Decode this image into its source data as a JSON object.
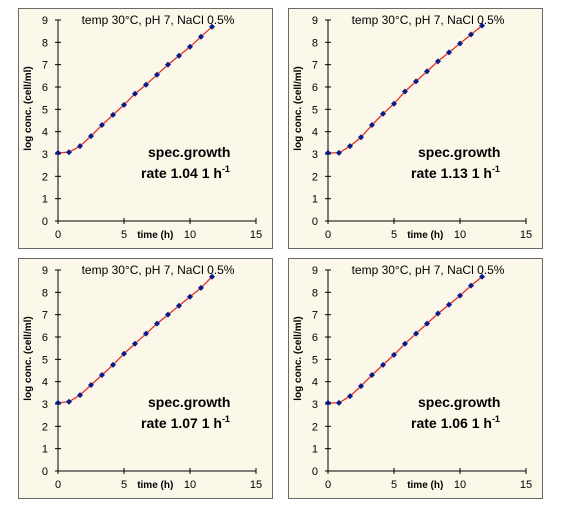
{
  "chart_data": [
    {
      "type": "scatter",
      "title": "temp 30°C, pH 7, NaCl 0.5%",
      "xlabel": "time (h)",
      "ylabel": "log conc. (cell/ml)",
      "xlim": [
        0,
        15
      ],
      "ylim": [
        0,
        9
      ],
      "xticks": [
        "0",
        "5",
        "10",
        "15"
      ],
      "yticks": [
        "0",
        "1",
        "2",
        "3",
        "4",
        "5",
        "6",
        "7",
        "8",
        "9"
      ],
      "grid": false,
      "annotation": {
        "line1": "spec.growth",
        "line2": "rate 1.04 1 h",
        "sup": "-1"
      },
      "series": [
        {
          "x": [
            0,
            0.83,
            1.67,
            2.5,
            3.33,
            4.17,
            5,
            5.83,
            6.67,
            7.5,
            8.33,
            9.17,
            10,
            10.83,
            11.67
          ],
          "y": [
            3.05,
            3.08,
            3.35,
            3.8,
            4.3,
            4.75,
            5.2,
            5.7,
            6.1,
            6.55,
            7.0,
            7.4,
            7.8,
            8.25,
            8.7
          ]
        }
      ],
      "fit": {
        "x": [
          0,
          0.83,
          1.67,
          2.5,
          3.33,
          4.17,
          5,
          5.83,
          6.67,
          7.5,
          8.33,
          9.17,
          10,
          10.83,
          11.67
        ],
        "y": [
          3.05,
          3.08,
          3.35,
          3.8,
          4.3,
          4.75,
          5.2,
          5.7,
          6.1,
          6.55,
          7.0,
          7.4,
          7.8,
          8.25,
          8.7
        ]
      }
    },
    {
      "type": "scatter",
      "title": "temp 30°C, pH 7, NaCl 0.5%",
      "xlabel": "time (h)",
      "ylabel": "log conc. (cell/ml)",
      "xlim": [
        0,
        15
      ],
      "ylim": [
        0,
        9
      ],
      "xticks": [
        "0",
        "5",
        "10",
        "15"
      ],
      "yticks": [
        "0",
        "1",
        "2",
        "3",
        "4",
        "5",
        "6",
        "7",
        "8",
        "9"
      ],
      "grid": false,
      "annotation": {
        "line1": "spec.growth",
        "line2": "rate 1.13 1 h",
        "sup": "-1"
      },
      "series": [
        {
          "x": [
            0,
            0.83,
            1.67,
            2.5,
            3.33,
            4.17,
            5,
            5.83,
            6.67,
            7.5,
            8.33,
            9.17,
            10,
            10.83,
            11.67
          ],
          "y": [
            3.05,
            3.05,
            3.35,
            3.75,
            4.3,
            4.8,
            5.25,
            5.8,
            6.25,
            6.7,
            7.15,
            7.55,
            7.95,
            8.35,
            8.75
          ]
        }
      ],
      "fit": {
        "x": [
          0,
          0.83,
          1.67,
          2.5,
          3.33,
          4.17,
          5,
          5.83,
          6.67,
          7.5,
          8.33,
          9.17,
          10,
          10.83,
          11.67
        ],
        "y": [
          3.05,
          3.05,
          3.35,
          3.75,
          4.3,
          4.8,
          5.25,
          5.8,
          6.25,
          6.7,
          7.15,
          7.55,
          7.95,
          8.35,
          8.75
        ]
      }
    },
    {
      "type": "scatter",
      "title": "temp 30°C, pH 7, NaCl 0.5%",
      "xlabel": "time (h)",
      "ylabel": "log conc. (cell/ml)",
      "xlim": [
        0,
        15
      ],
      "ylim": [
        0,
        9
      ],
      "xticks": [
        "0",
        "5",
        "10",
        "15"
      ],
      "yticks": [
        "0",
        "1",
        "2",
        "3",
        "4",
        "5",
        "6",
        "7",
        "8",
        "9"
      ],
      "grid": false,
      "annotation": {
        "line1": "spec.growth",
        "line2": "rate 1.07 1 h",
        "sup": "-1"
      },
      "series": [
        {
          "x": [
            0,
            0.83,
            1.67,
            2.5,
            3.33,
            4.17,
            5,
            5.83,
            6.67,
            7.5,
            8.33,
            9.17,
            10,
            10.83,
            11.67
          ],
          "y": [
            3.05,
            3.1,
            3.4,
            3.85,
            4.3,
            4.75,
            5.25,
            5.7,
            6.15,
            6.6,
            7.0,
            7.4,
            7.8,
            8.2,
            8.7
          ]
        }
      ],
      "fit": {
        "x": [
          0,
          0.83,
          1.67,
          2.5,
          3.33,
          4.17,
          5,
          5.83,
          6.67,
          7.5,
          8.33,
          9.17,
          10,
          10.83,
          11.67
        ],
        "y": [
          3.05,
          3.1,
          3.4,
          3.85,
          4.3,
          4.75,
          5.25,
          5.7,
          6.15,
          6.6,
          7.0,
          7.4,
          7.8,
          8.2,
          8.7
        ]
      }
    },
    {
      "type": "scatter",
      "title": "temp 30°C, pH 7, NaCl 0.5%",
      "xlabel": "time (h)",
      "ylabel": "log conc. (cell/ml)",
      "xlim": [
        0,
        15
      ],
      "ylim": [
        0,
        9
      ],
      "xticks": [
        "0",
        "5",
        "10",
        "15"
      ],
      "yticks": [
        "0",
        "1",
        "2",
        "3",
        "4",
        "5",
        "6",
        "7",
        "8",
        "9"
      ],
      "grid": false,
      "annotation": {
        "line1": "spec.growth",
        "line2": "rate 1.06 1 h",
        "sup": "-1"
      },
      "series": [
        {
          "x": [
            0,
            0.83,
            1.67,
            2.5,
            3.33,
            4.17,
            5,
            5.83,
            6.67,
            7.5,
            8.33,
            9.17,
            10,
            10.83,
            11.67
          ],
          "y": [
            3.05,
            3.05,
            3.35,
            3.8,
            4.3,
            4.75,
            5.2,
            5.7,
            6.15,
            6.6,
            7.05,
            7.45,
            7.85,
            8.3,
            8.7
          ]
        }
      ],
      "fit": {
        "x": [
          0,
          0.83,
          1.67,
          2.5,
          3.33,
          4.17,
          5,
          5.83,
          6.67,
          7.5,
          8.33,
          9.17,
          10,
          10.83,
          11.67
        ],
        "y": [
          3.05,
          3.05,
          3.35,
          3.8,
          4.3,
          4.75,
          5.2,
          5.7,
          6.15,
          6.6,
          7.05,
          7.45,
          7.85,
          8.3,
          8.7
        ]
      }
    }
  ],
  "colors": {
    "background": "#fbf8e9",
    "fit_line": "#e0302a",
    "points": "#0a1a8a"
  }
}
